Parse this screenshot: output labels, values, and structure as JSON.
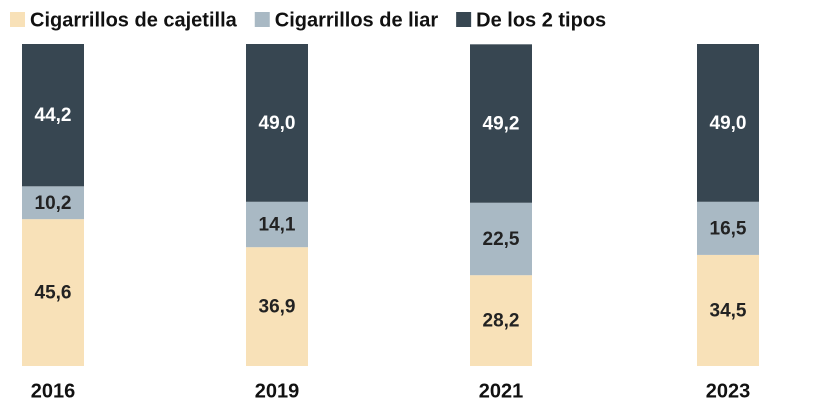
{
  "chart_data": {
    "type": "stacked_bar",
    "categories": [
      "2016",
      "2019",
      "2021",
      "2023"
    ],
    "series": [
      {
        "name": "Cigarrillos de cajetilla",
        "color": "#f8e1b8",
        "values": [
          45.6,
          36.9,
          28.2,
          34.5
        ],
        "value_labels": [
          "45,6",
          "36,9",
          "28,2",
          "34,5"
        ]
      },
      {
        "name": "Cigarrillos de liar",
        "color": "#a9b9c4",
        "values": [
          10.2,
          14.1,
          22.5,
          16.5
        ],
        "value_labels": [
          "10,2",
          "14,1",
          "22,5",
          "16,5"
        ]
      },
      {
        "name": "De los 2 tipos",
        "color": "#374651",
        "values": [
          44.2,
          49.0,
          49.2,
          49.0
        ],
        "value_labels": [
          "44,2",
          "49,0",
          "49,2",
          "49,0"
        ]
      }
    ],
    "legend": "top"
  }
}
